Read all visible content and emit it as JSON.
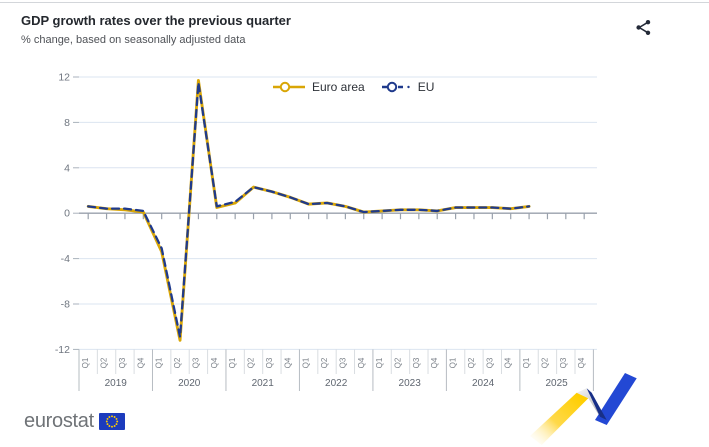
{
  "header": {
    "title": "GDP growth rates over the previous quarter",
    "subtitle": "% change, based on seasonally adjusted data"
  },
  "chart_data": {
    "type": "line",
    "title": "GDP growth rates over the previous quarter",
    "subtitle": "% change, based on seasonally adjusted data",
    "unit": "% change on previous quarter",
    "ylim": [
      -12,
      12
    ],
    "yticks": [
      12,
      8,
      4,
      0,
      -4,
      -8,
      -12
    ],
    "grid": true,
    "legend_position": "top-center",
    "years": [
      "2019",
      "2020",
      "2021",
      "2022",
      "2023",
      "2024",
      "2025"
    ],
    "quarter_labels": [
      "Q1",
      "Q2",
      "Q3",
      "Q4"
    ],
    "x_categories": [
      "2019-Q1",
      "2019-Q2",
      "2019-Q3",
      "2019-Q4",
      "2020-Q1",
      "2020-Q2",
      "2020-Q3",
      "2020-Q4",
      "2021-Q1",
      "2021-Q2",
      "2021-Q3",
      "2021-Q4",
      "2022-Q1",
      "2022-Q2",
      "2022-Q3",
      "2022-Q4",
      "2023-Q1",
      "2023-Q2",
      "2023-Q3",
      "2023-Q4",
      "2024-Q1",
      "2024-Q2",
      "2024-Q3",
      "2024-Q4",
      "2025-Q1"
    ],
    "series": [
      {
        "name": "Euro area",
        "color": "#D9A606",
        "line_style": "solid",
        "values": [
          0.6,
          0.4,
          0.3,
          0.1,
          -3.4,
          -11.2,
          11.7,
          0.5,
          0.9,
          2.3,
          1.9,
          1.4,
          0.8,
          0.9,
          0.6,
          0.1,
          0.2,
          0.3,
          0.3,
          0.2,
          0.5,
          0.5,
          0.5,
          0.4,
          0.6
        ]
      },
      {
        "name": "EU",
        "color": "#1F3A8C",
        "line_style": "dashed",
        "values": [
          0.6,
          0.4,
          0.4,
          0.2,
          -3.1,
          -10.9,
          11.5,
          0.6,
          1.0,
          2.3,
          1.9,
          1.4,
          0.8,
          0.9,
          0.6,
          0.1,
          0.2,
          0.3,
          0.3,
          0.2,
          0.5,
          0.5,
          0.5,
          0.4,
          0.6
        ]
      }
    ]
  },
  "footer": {
    "logo_text": "eurostat"
  },
  "colors": {
    "euro_area": "#D9A606",
    "eu": "#1F3A8C",
    "grid": "#DBE4F0",
    "zero_line": "#99A1AC",
    "axis_text": "#6F7680",
    "ribbon_yellow": "#FFCE00",
    "ribbon_blue": "#2348D4",
    "ribbon_navy": "#182F87",
    "ribbon_silver": "#C9C9CB",
    "flag_blue": "#1C3BBD",
    "star_yellow": "#FFCC00"
  }
}
